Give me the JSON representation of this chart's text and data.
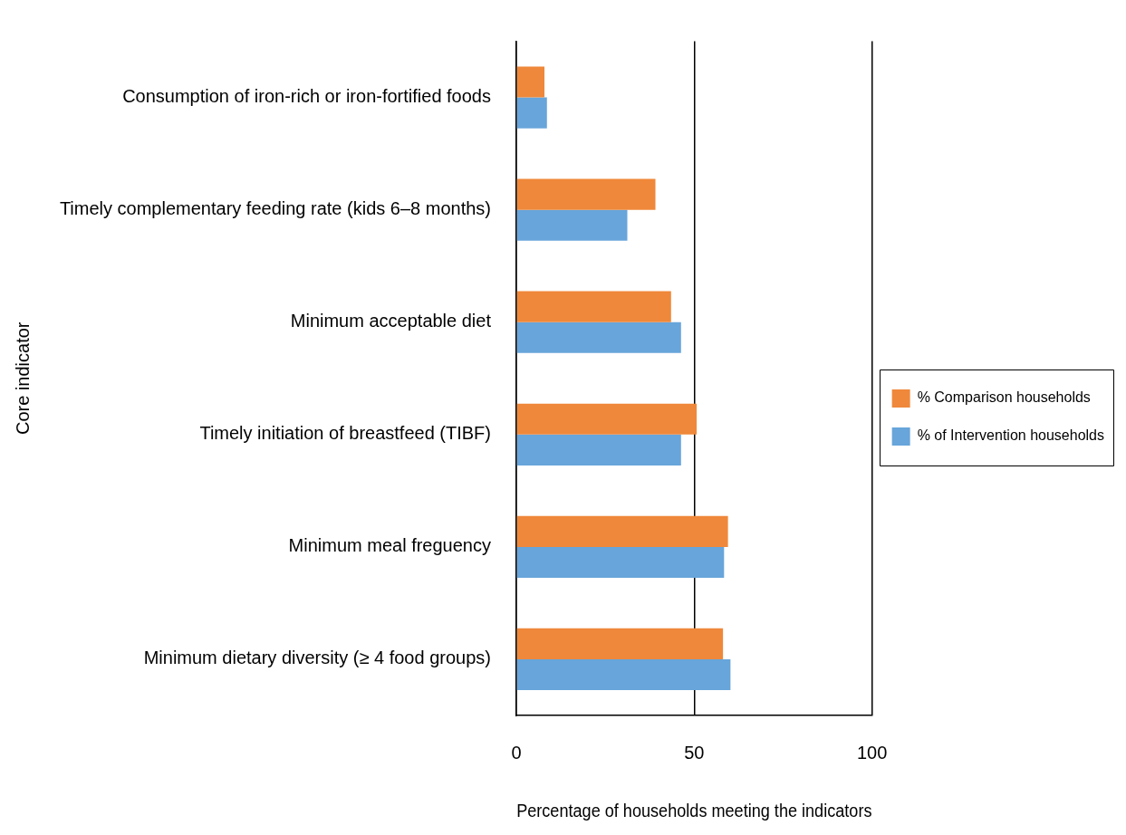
{
  "chart_data": {
    "type": "bar",
    "orientation": "horizontal",
    "xlabel": "Percentage of households meeting the indicators",
    "ylabel": "Core indicator",
    "categories": [
      "Consumption of iron-rich or iron-fortified foods",
      "Timely complementary feeding rate (kids 6–8 months)",
      "Minimum acceptable diet",
      "Timely initiation of breastfeed (TIBF)",
      "Minimum meal freguency",
      "Minimum dietary diversity (≥ 4 food groups)"
    ],
    "series": [
      {
        "name": "% Comparison households",
        "color": "#ef883a",
        "values": [
          7.9,
          39.1,
          43.5,
          50.7,
          59.5,
          58.1
        ]
      },
      {
        "name": "% of Intervention households",
        "color": "#67a5da",
        "values": [
          8.6,
          31.2,
          46.3,
          46.3,
          58.4,
          60.2
        ]
      }
    ],
    "xlim": [
      0,
      100
    ],
    "xticks": [
      0,
      50,
      100
    ],
    "grid": "x",
    "legend": "right"
  }
}
